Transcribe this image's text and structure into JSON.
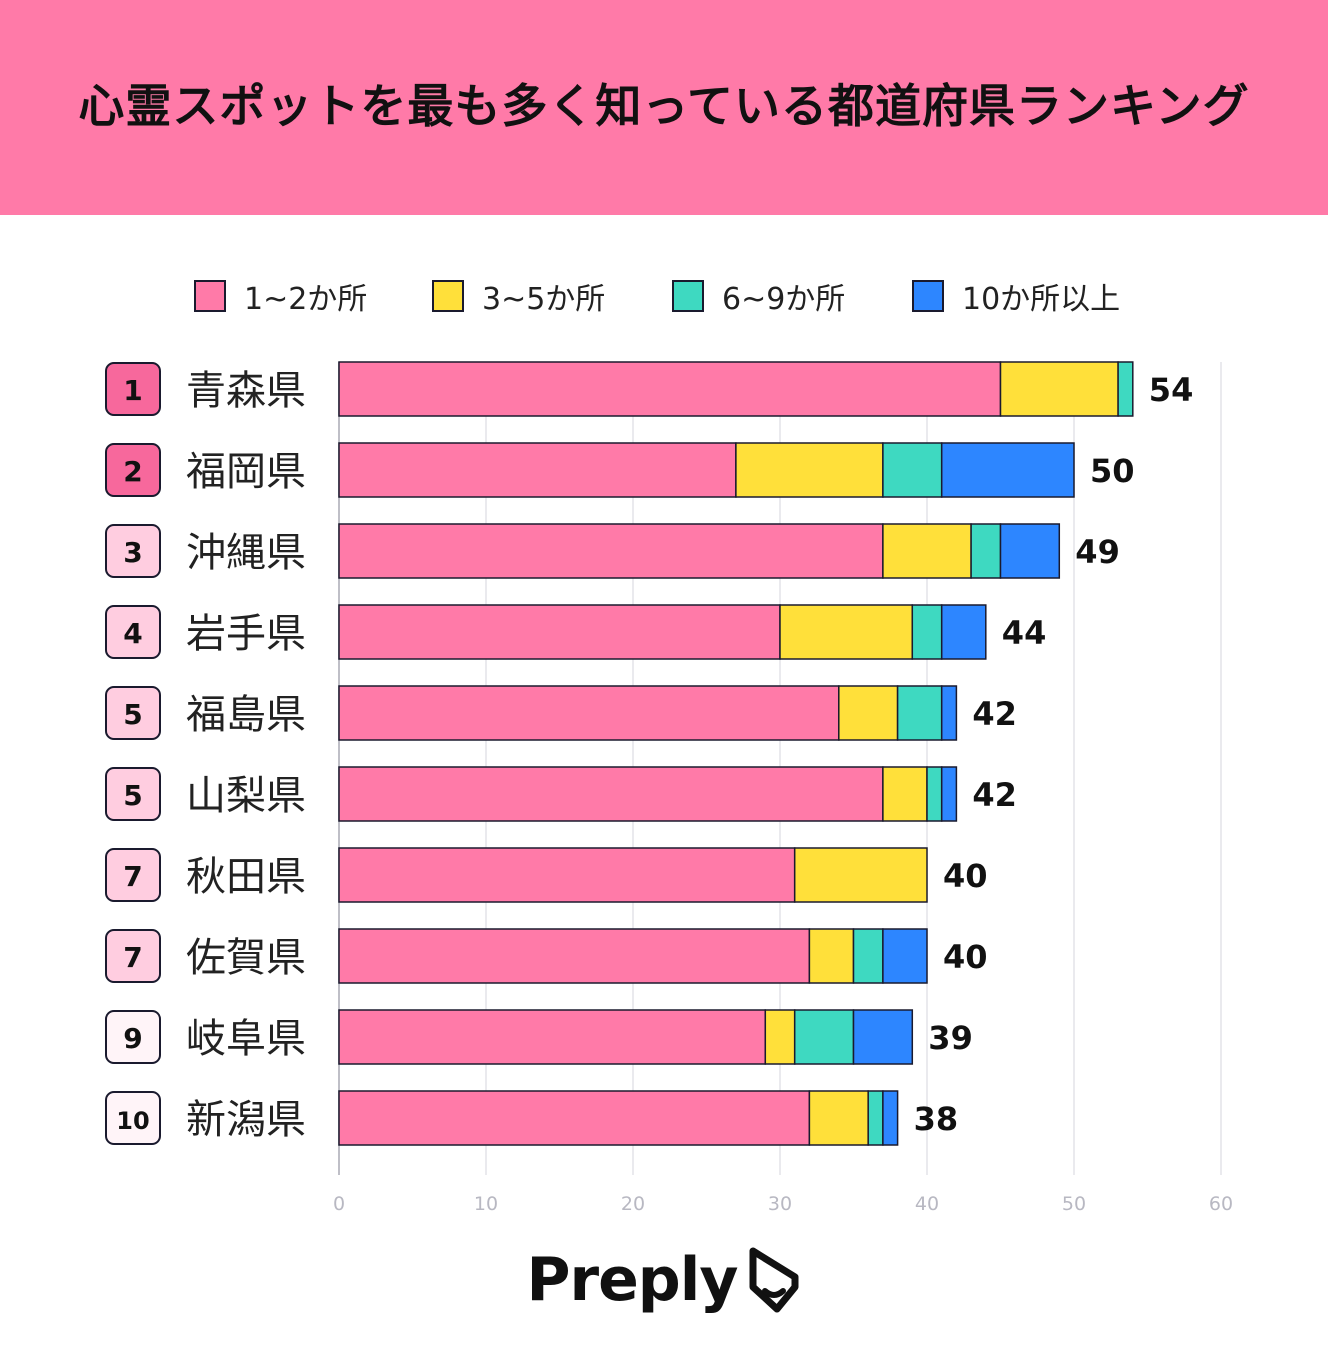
{
  "header": {
    "title": "心霊スポットを最も多く知っている都道府県ランキング",
    "brand": "Preply"
  },
  "colors": {
    "banner": "#ff7aa8",
    "series": [
      "#ff7aa8",
      "#ffe03a",
      "#3ed9c1",
      "#2d86ff"
    ],
    "rank_top": "#f7689c",
    "rank_mid": "#ffcde0",
    "rank_low": "#fff4f8"
  },
  "chart_data": {
    "type": "bar",
    "orientation": "horizontal",
    "stacked": true,
    "title": "心霊スポットを最も多く知っている都道府県ランキング",
    "categories": [
      "青森県",
      "福岡県",
      "沖縄県",
      "岩手県",
      "福島県",
      "山梨県",
      "秋田県",
      "佐賀県",
      "岐阜県",
      "新潟県"
    ],
    "ranks": [
      "1",
      "2",
      "3",
      "4",
      "5",
      "5",
      "7",
      "7",
      "9",
      "10"
    ],
    "series": [
      {
        "name": "1~2か所",
        "values": [
          45,
          27,
          37,
          30,
          34,
          37,
          31,
          32,
          29,
          32
        ]
      },
      {
        "name": "3~5か所",
        "values": [
          8,
          10,
          6,
          9,
          4,
          3,
          9,
          3,
          2,
          4
        ]
      },
      {
        "name": "6~9か所",
        "values": [
          1,
          4,
          2,
          2,
          3,
          1,
          0,
          2,
          4,
          1
        ]
      },
      {
        "name": "10か所以上",
        "values": [
          0,
          9,
          4,
          3,
          1,
          1,
          0,
          3,
          4,
          1
        ]
      }
    ],
    "totals": [
      54,
      50,
      49,
      44,
      42,
      42,
      40,
      40,
      39,
      38
    ],
    "xlim": [
      0,
      60
    ],
    "xticks": [
      "0",
      "10",
      "20",
      "30",
      "40",
      "50",
      "60"
    ],
    "grid": true,
    "legend": "top"
  }
}
